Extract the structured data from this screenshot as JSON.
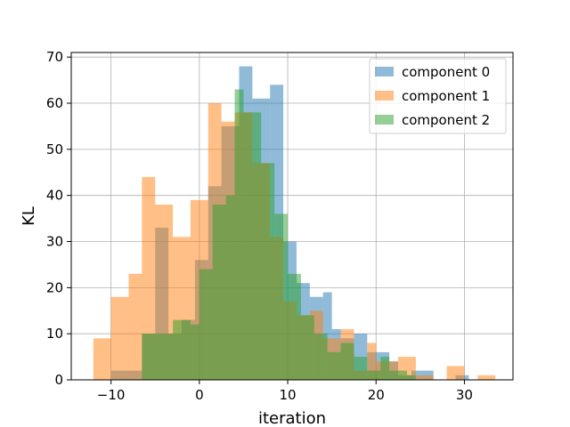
{
  "chart_data": {
    "type": "bar",
    "subtype": "overlapping-histogram",
    "title": "",
    "xlabel": "iteration",
    "ylabel": "KL",
    "xlim": [
      -14.5,
      35.5
    ],
    "ylim": [
      0,
      71
    ],
    "xticks": [
      -10,
      0,
      10,
      20,
      30
    ],
    "yticks": [
      0,
      10,
      20,
      30,
      40,
      50,
      60,
      70
    ],
    "grid": true,
    "legend_position": "top-right",
    "series": [
      {
        "name": "component 0",
        "color": "#1f77b4",
        "alpha": 0.5,
        "bin_edges": [
          -10,
          -6.5,
          -5,
          -3.5,
          -2,
          -0.5,
          1,
          2.5,
          4.5,
          6,
          8,
          9.5,
          11,
          12.5,
          14,
          15,
          16,
          17.5,
          19,
          20,
          21.5,
          22.5,
          24,
          25,
          26.5,
          29,
          30.5
        ],
        "counts": [
          2,
          10,
          33,
          10,
          13,
          26,
          42,
          55,
          68,
          61,
          64,
          30,
          21,
          18,
          19,
          11,
          9,
          10,
          6,
          6,
          4,
          1,
          2,
          2,
          0,
          1
        ]
      },
      {
        "name": "component 1",
        "color": "#ff7f0e",
        "alpha": 0.5,
        "bin_edges": [
          -12,
          -10,
          -8,
          -6.5,
          -5,
          -3,
          -1,
          1,
          2.5,
          4,
          6,
          8,
          9.5,
          11,
          12.5,
          14,
          16,
          17.5,
          19,
          20,
          22.5,
          24.5,
          26.5,
          28,
          30,
          31.5,
          33.5
        ],
        "counts": [
          9,
          18,
          23,
          44,
          38,
          31,
          39,
          60,
          56,
          58,
          47,
          31,
          17,
          14,
          15,
          9,
          11,
          2,
          8,
          4,
          5,
          1,
          0,
          3,
          0,
          1
        ]
      },
      {
        "name": "component 2",
        "color": "#2ca02c",
        "alpha": 0.5,
        "bin_edges": [
          -6.5,
          -3,
          -1,
          0,
          1.5,
          3,
          4,
          5,
          7,
          8.5,
          10,
          11.5,
          13,
          14.5,
          16,
          17.5,
          19,
          20.5,
          21.5,
          23.5,
          24.5
        ],
        "counts": [
          10,
          13,
          12,
          24,
          38,
          40,
          63,
          58,
          47,
          36,
          23,
          14,
          10,
          6,
          8,
          5,
          2,
          5,
          2,
          1
        ]
      }
    ]
  }
}
